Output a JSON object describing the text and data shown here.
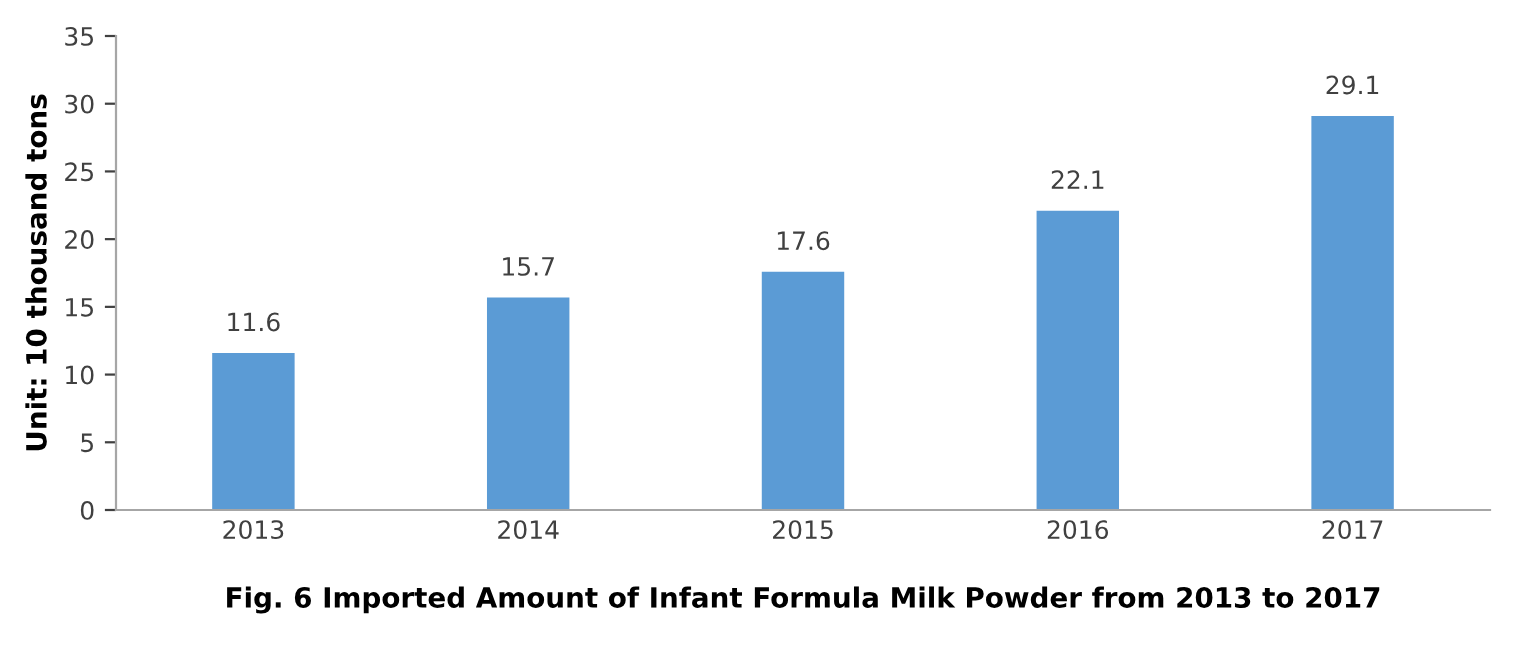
{
  "chart_data": {
    "type": "bar",
    "title": "Fig. 6 Imported Amount of Infant Formula Milk Powder from 2013 to 2017",
    "ylabel": "Unit: 10 thousand tons",
    "categories": [
      "2013",
      "2014",
      "2015",
      "2016",
      "2017"
    ],
    "values": [
      11.6,
      15.7,
      17.6,
      22.1,
      29.1
    ],
    "color": "#5b9bd5",
    "ylim": [
      0,
      35
    ],
    "yticks": [
      0,
      5,
      10,
      15,
      20,
      25,
      30,
      35
    ],
    "data_labels": true,
    "grid": false,
    "legend": false
  }
}
